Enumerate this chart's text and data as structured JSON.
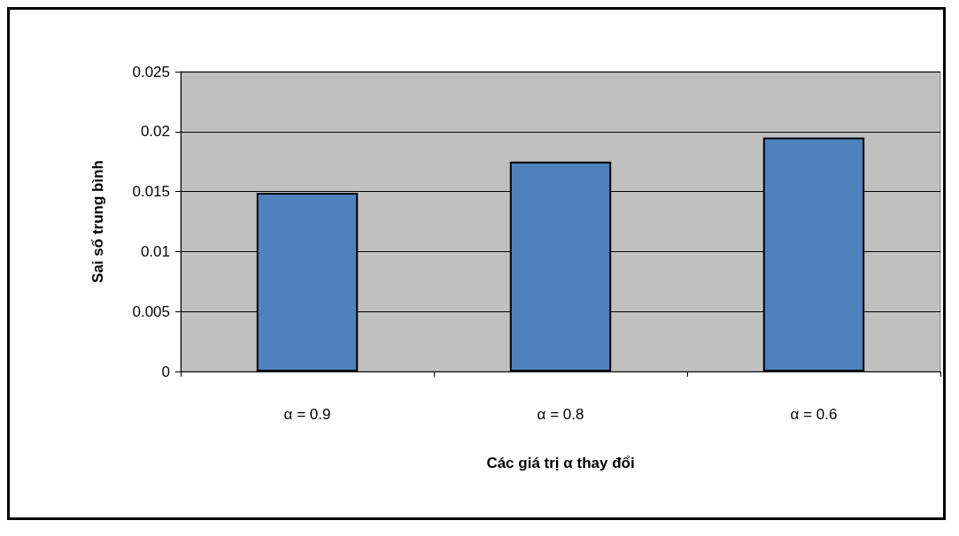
{
  "chart_data": {
    "type": "bar",
    "xlabel": "Các giá trị α thay đổi",
    "ylabel": "Sai số trung bình",
    "categories": [
      "α = 0.9",
      "α = 0.8",
      "α = 0.6"
    ],
    "values": [
      0.0149,
      0.0175,
      0.0195
    ],
    "color": "#4f81bd",
    "ylim": [
      0,
      0.025
    ],
    "yticks": [
      0,
      0.005,
      0.01,
      0.015,
      0.02,
      0.025
    ],
    "grid": "y"
  }
}
